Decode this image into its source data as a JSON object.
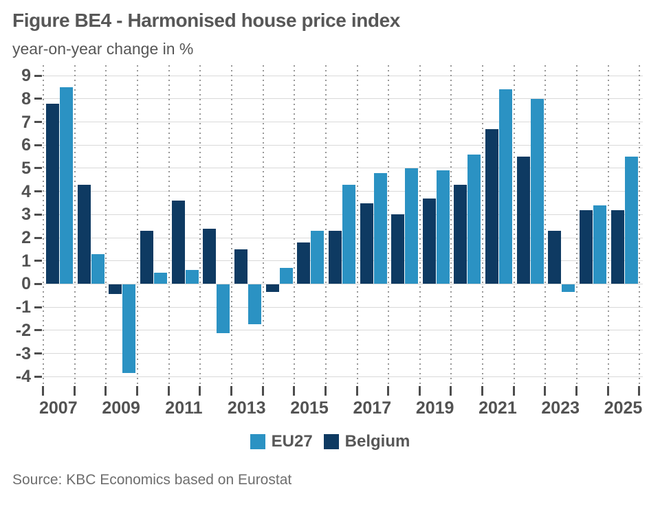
{
  "chart_data": {
    "type": "bar",
    "title": "Figure BE4 - Harmonised house price index",
    "subtitle": "year-on-year change in %",
    "categories": [
      "2007",
      "2008",
      "2009",
      "2010",
      "2011",
      "2012",
      "2013",
      "2014",
      "2015",
      "2016",
      "2017",
      "2018",
      "2019",
      "2020",
      "2021",
      "2022",
      "2023",
      "2024",
      "2025"
    ],
    "series": [
      {
        "name": "Belgium",
        "color": "#0e3a62",
        "values": [
          7.8,
          4.3,
          -0.4,
          2.3,
          3.6,
          2.4,
          1.5,
          -0.3,
          1.8,
          2.3,
          3.5,
          3.0,
          3.7,
          4.3,
          6.7,
          5.5,
          2.3,
          3.2,
          3.2
        ]
      },
      {
        "name": "EU27",
        "color": "#2b92c3",
        "values": [
          8.5,
          1.3,
          -3.8,
          0.5,
          0.6,
          -2.1,
          -1.7,
          0.7,
          2.3,
          4.3,
          4.8,
          5.0,
          4.9,
          5.6,
          8.4,
          8.0,
          -0.3,
          3.4,
          5.5
        ]
      }
    ],
    "ylim": [
      -4,
      9
    ],
    "yticks": [
      9,
      8,
      7,
      6,
      5,
      4,
      3,
      2,
      1,
      0,
      -1,
      -2,
      -3,
      -4
    ],
    "xtick_labels": [
      "2007",
      "2009",
      "2011",
      "2013",
      "2015",
      "2017",
      "2019",
      "2021",
      "2023",
      "2025"
    ],
    "grid": {
      "horizontal": "solid",
      "vertical": "dotted"
    },
    "legend": {
      "position": "bottom",
      "order": [
        "EU27",
        "Belgium"
      ]
    }
  },
  "source_note": "Source: KBC Economics based on Eurostat",
  "colors": {
    "eu27": "#2b92c3",
    "belgium": "#0e3a62",
    "heading_text": "#575757",
    "axis_text": "#525252",
    "gridline": "#d9d9d9",
    "dotted_grid": "#969696",
    "source_text": "#6e6e6e"
  }
}
